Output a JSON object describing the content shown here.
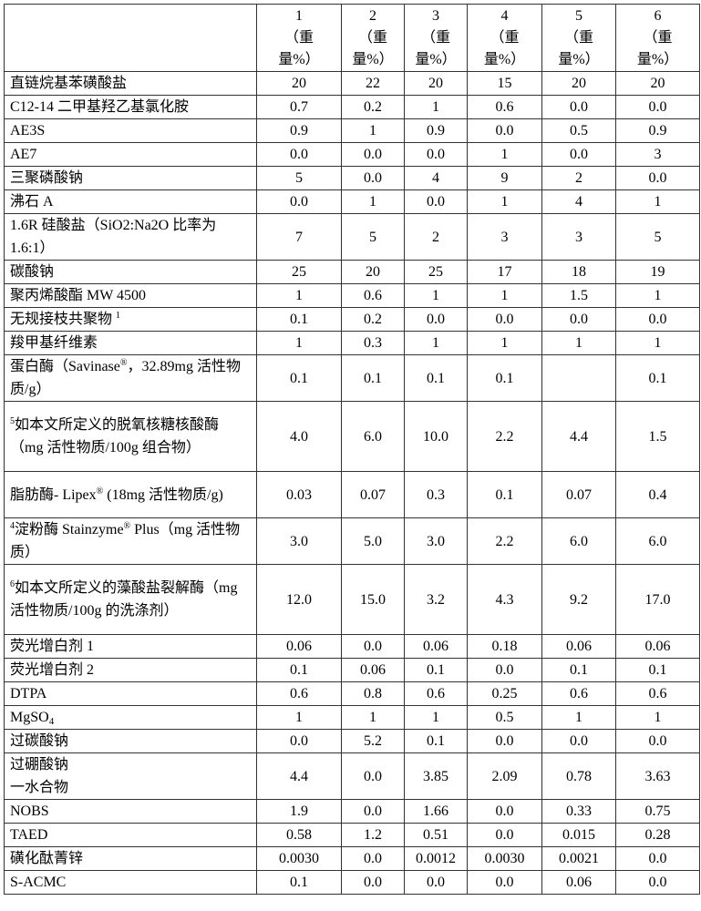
{
  "header": {
    "columns": [
      {
        "num": "1",
        "l1": "（重",
        "l2": "量%）"
      },
      {
        "num": "2",
        "l1": "（重",
        "l2": "量%）"
      },
      {
        "num": "3",
        "l1": "（重",
        "l2": "量%）"
      },
      {
        "num": "4",
        "l1": "（重",
        "l2": "量%）"
      },
      {
        "num": "5",
        "l1": "（重",
        "l2": "量%）"
      },
      {
        "num": "6",
        "l1": "（重",
        "l2": "量%）"
      }
    ]
  },
  "rows": [
    {
      "lines": 1,
      "label": [
        {
          "t": "直链烷基苯磺酸盐"
        }
      ],
      "values": [
        "20",
        "22",
        "20",
        "15",
        "20",
        "20"
      ]
    },
    {
      "lines": 1,
      "label": [
        {
          "t": "C12-14 二甲基羟乙基氯化胺"
        }
      ],
      "values": [
        "0.7",
        "0.2",
        "1",
        "0.6",
        "0.0",
        "0.0"
      ]
    },
    {
      "lines": 1,
      "label": [
        {
          "t": "AE3S"
        }
      ],
      "values": [
        "0.9",
        "1",
        "0.9",
        "0.0",
        "0.5",
        "0.9"
      ]
    },
    {
      "lines": 1,
      "label": [
        {
          "t": "AE7"
        }
      ],
      "values": [
        "0.0",
        "0.0",
        "0.0",
        "1",
        "0.0",
        "3"
      ]
    },
    {
      "lines": 1,
      "label": [
        {
          "t": "三聚磷酸钠"
        }
      ],
      "values": [
        "5",
        "0.0",
        "4",
        "9",
        "2",
        "0.0"
      ]
    },
    {
      "lines": 1,
      "label": [
        {
          "t": "沸石 A"
        }
      ],
      "values": [
        "0.0",
        "1",
        "0.0",
        "1",
        "4",
        "1"
      ]
    },
    {
      "lines": 2,
      "label": [
        {
          "t": "1.6R 硅酸盐（SiO2:Na2O 比率为 1.6:1）"
        }
      ],
      "values": [
        "7",
        "5",
        "2",
        "3",
        "3",
        "5"
      ]
    },
    {
      "lines": 1,
      "label": [
        {
          "t": "碳酸钠"
        }
      ],
      "values": [
        "25",
        "20",
        "25",
        "17",
        "18",
        "19"
      ]
    },
    {
      "lines": 1,
      "label": [
        {
          "t": "聚丙烯酸酯 MW 4500"
        }
      ],
      "values": [
        "1",
        "0.6",
        "1",
        "1",
        "1.5",
        "1"
      ]
    },
    {
      "lines": 1,
      "label": [
        {
          "t": "无规接枝共聚物 "
        },
        {
          "sup": "1"
        }
      ],
      "values": [
        "0.1",
        "0.2",
        "0.0",
        "0.0",
        "0.0",
        "0.0"
      ]
    },
    {
      "lines": 1,
      "label": [
        {
          "t": "羧甲基纤维素"
        }
      ],
      "values": [
        "1",
        "0.3",
        "1",
        "1",
        "1",
        "1"
      ]
    },
    {
      "lines": 2,
      "label": [
        {
          "t": "蛋白酶（Savinase"
        },
        {
          "sup": "®"
        },
        {
          "t": "，32.89mg 活性物质/g）"
        }
      ],
      "values": [
        "0.1",
        "0.1",
        "0.1",
        "0.1",
        "",
        "0.1"
      ]
    },
    {
      "lines": 3,
      "label": [
        {
          "sup": "5"
        },
        {
          "t": "如本文所定义的脱氧核糖核酸酶（mg 活性物质/100g 组合物）"
        }
      ],
      "values": [
        "4.0",
        "6.0",
        "10.0",
        "2.2",
        "4.4",
        "1.5"
      ]
    },
    {
      "lines": 2,
      "label": [
        {
          "t": "脂肪酶- Lipex"
        },
        {
          "sup": "®"
        },
        {
          "t": " (18mg 活性物质/g)"
        }
      ],
      "values": [
        "0.03",
        "0.07",
        "0.3",
        "0.1",
        "0.07",
        "0.4"
      ]
    },
    {
      "lines": 2,
      "label": [
        {
          "sup": "4"
        },
        {
          "t": "淀粉酶 Stainzyme"
        },
        {
          "sup": "®"
        },
        {
          "t": " Plus（mg 活性物质）"
        }
      ],
      "values": [
        "3.0",
        "5.0",
        "3.0",
        "2.2",
        "6.0",
        "6.0"
      ]
    },
    {
      "lines": 3,
      "label": [
        {
          "sup": "6"
        },
        {
          "t": "如本文所定义的藻酸盐裂解酶（mg 活性物质/100g 的洗涤剂）"
        }
      ],
      "values": [
        "12.0",
        "15.0",
        "3.2",
        "4.3",
        "9.2",
        "17.0"
      ]
    },
    {
      "lines": 1,
      "label": [
        {
          "t": "荧光增白剂 1"
        }
      ],
      "values": [
        "0.06",
        "0.0",
        "0.06",
        "0.18",
        "0.06",
        "0.06"
      ]
    },
    {
      "lines": 1,
      "label": [
        {
          "t": "荧光增白剂 2"
        }
      ],
      "values": [
        "0.1",
        "0.06",
        "0.1",
        "0.0",
        "0.1",
        "0.1"
      ]
    },
    {
      "lines": 1,
      "label": [
        {
          "t": "DTPA"
        }
      ],
      "values": [
        "0.6",
        "0.8",
        "0.6",
        "0.25",
        "0.6",
        "0.6"
      ]
    },
    {
      "lines": 1,
      "label": [
        {
          "t": "MgSO"
        },
        {
          "sub": "4"
        }
      ],
      "values": [
        "1",
        "1",
        "1",
        "0.5",
        "1",
        "1"
      ]
    },
    {
      "lines": 1,
      "label": [
        {
          "t": "过碳酸钠"
        }
      ],
      "values": [
        "0.0",
        "5.2",
        "0.1",
        "0.0",
        "0.0",
        "0.0"
      ]
    },
    {
      "lines": 2,
      "label": [
        {
          "t": "过硼酸钠"
        },
        {
          "br": true
        },
        {
          "t": "一水合物"
        }
      ],
      "values": [
        "4.4",
        "0.0",
        "3.85",
        "2.09",
        "0.78",
        "3.63"
      ]
    },
    {
      "lines": 1,
      "label": [
        {
          "t": "NOBS"
        }
      ],
      "values": [
        "1.9",
        "0.0",
        "1.66",
        "0.0",
        "0.33",
        "0.75"
      ]
    },
    {
      "lines": 1,
      "label": [
        {
          "t": "TAED"
        }
      ],
      "values": [
        "0.58",
        "1.2",
        "0.51",
        "0.0",
        "0.015",
        "0.28"
      ]
    },
    {
      "lines": 1,
      "label": [
        {
          "t": "磺化酞菁锌"
        }
      ],
      "values": [
        "0.0030",
        "0.0",
        "0.0012",
        "0.0030",
        "0.0021",
        "0.0"
      ]
    },
    {
      "lines": 1,
      "label": [
        {
          "t": "S-ACMC"
        }
      ],
      "values": [
        "0.1",
        "0.0",
        "0.0",
        "0.0",
        "0.06",
        "0.0"
      ]
    }
  ]
}
